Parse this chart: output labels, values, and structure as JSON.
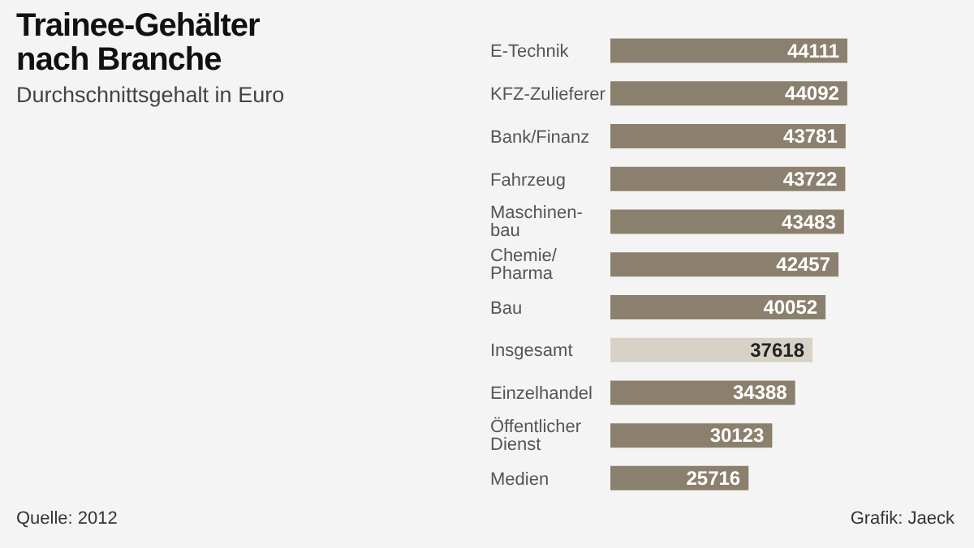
{
  "chart_data": {
    "type": "bar",
    "orientation": "horizontal",
    "title": "Trainee-Gehälter nach Branche",
    "subtitle": "Durchschnittsgehalt in Euro",
    "categories": [
      "E-Technik",
      "KFZ-Zulieferer",
      "Bank/Finanz",
      "Fahrzeug",
      "Maschinen-bau",
      "Chemie/Pharma",
      "Bau",
      "Insgesamt",
      "Einzelhandel",
      "Öffentlicher Dienst",
      "Medien"
    ],
    "values": [
      44111,
      44092,
      43781,
      43722,
      43483,
      42457,
      40052,
      37618,
      34388,
      30123,
      25716
    ],
    "colors": [
      "#8b806e",
      "#8b806e",
      "#8b806e",
      "#8b806e",
      "#8b806e",
      "#8b806e",
      "#8b806e",
      "#d8d1c6",
      "#8b806e",
      "#8b806e",
      "#8b806e"
    ],
    "value_labels": [
      "44111",
      "44092",
      "43781",
      "43722",
      "43483",
      "42457",
      "40052",
      "37618",
      "34388",
      "30123",
      "25716"
    ],
    "annotations": [
      "Quelle: 2012",
      "Grafik: Jaeck"
    ]
  }
}
